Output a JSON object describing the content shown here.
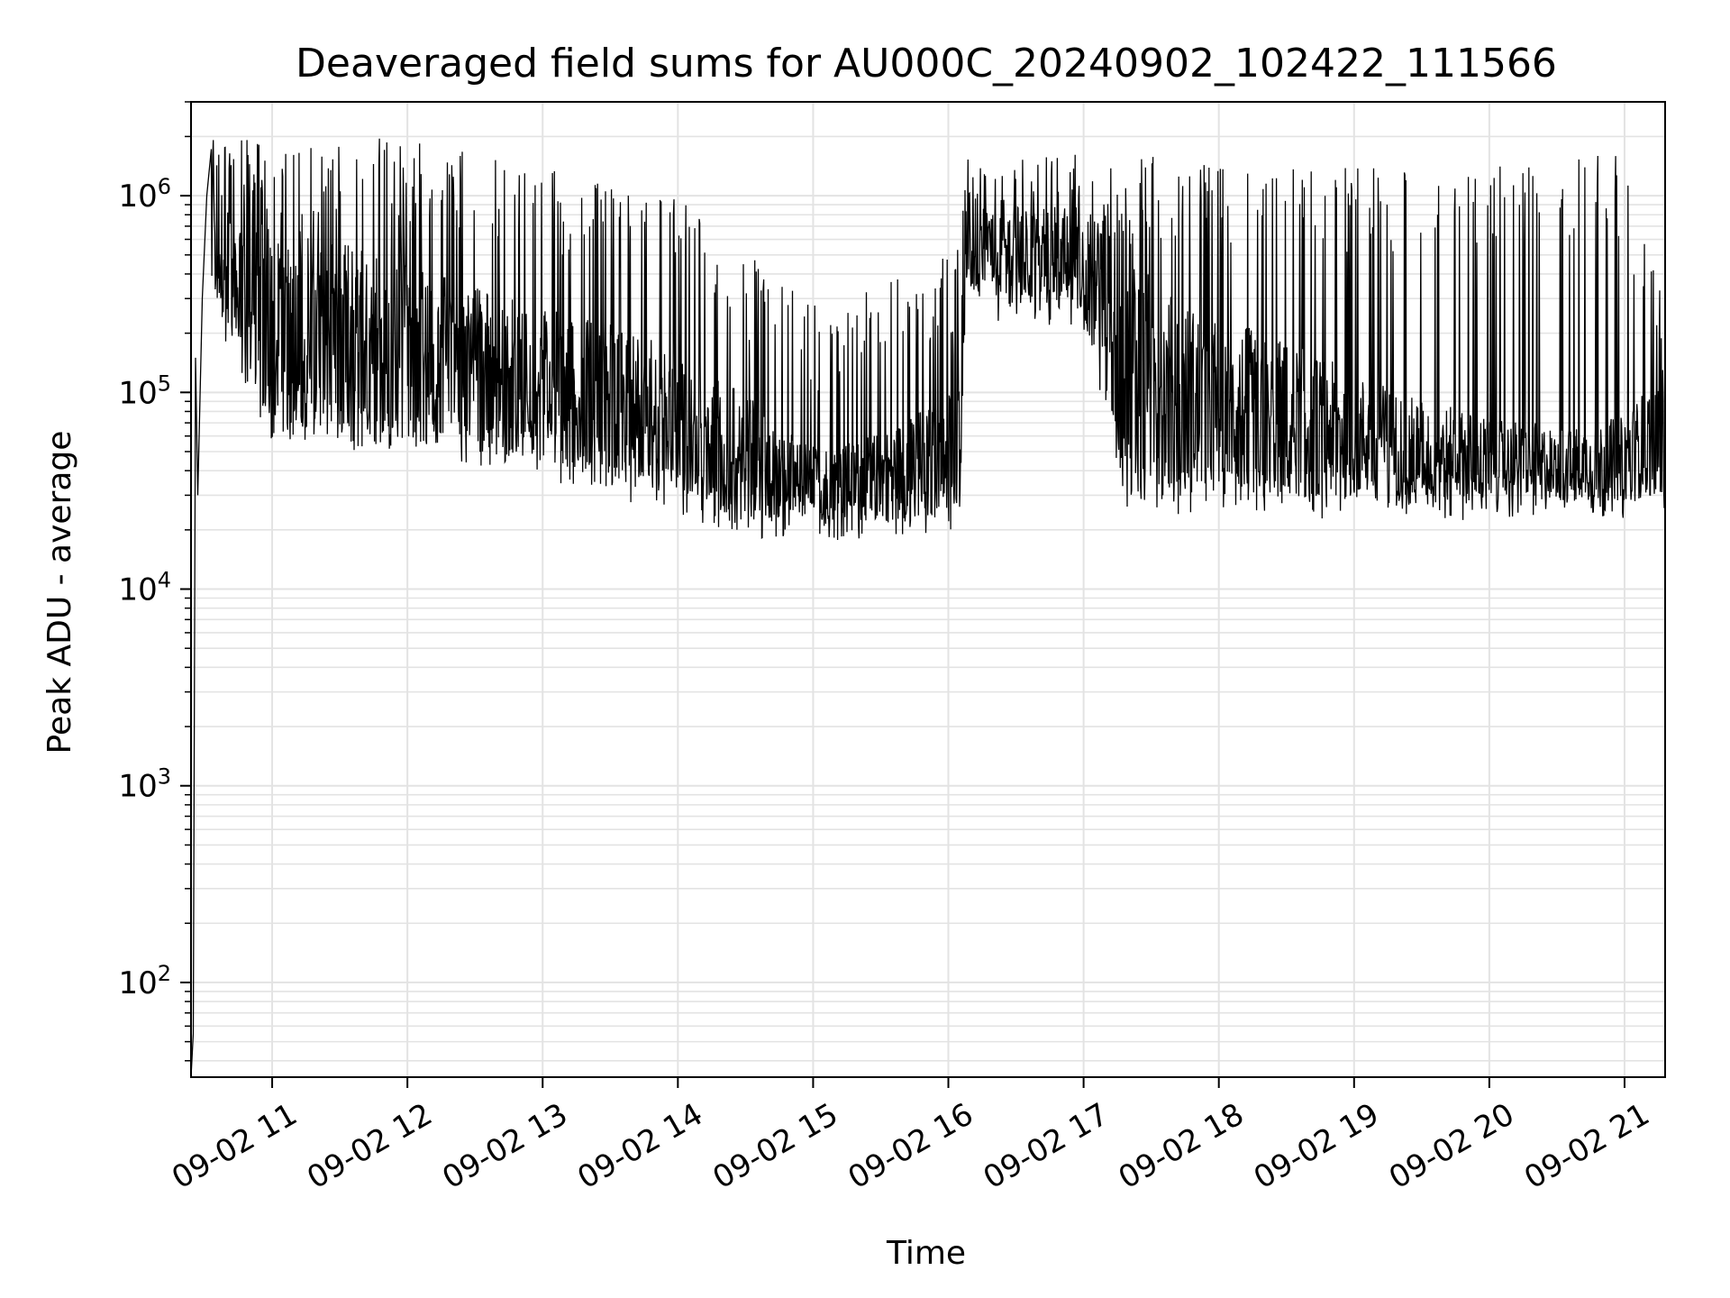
{
  "chart_data": {
    "type": "line",
    "title": "Deaveraged field sums for AU000C_20240902_102422_111566",
    "xlabel": "Time",
    "ylabel": "Peak ADU - average",
    "yscale": "log",
    "ylim": [
      33,
      3000000
    ],
    "xlim": [
      "2024-09-02 10:24",
      "2024-09-02 21:18"
    ],
    "grid": true,
    "line_color": "#000000",
    "grid_color": "#e3e3e3",
    "x_ticks": [
      {
        "t": "2024-09-02 11:00",
        "label": "09-02 11"
      },
      {
        "t": "2024-09-02 12:00",
        "label": "09-02 12"
      },
      {
        "t": "2024-09-02 13:00",
        "label": "09-02 13"
      },
      {
        "t": "2024-09-02 14:00",
        "label": "09-02 14"
      },
      {
        "t": "2024-09-02 15:00",
        "label": "09-02 15"
      },
      {
        "t": "2024-09-02 16:00",
        "label": "09-02 16"
      },
      {
        "t": "2024-09-02 17:00",
        "label": "09-02 17"
      },
      {
        "t": "2024-09-02 18:00",
        "label": "09-02 18"
      },
      {
        "t": "2024-09-02 19:00",
        "label": "09-02 19"
      },
      {
        "t": "2024-09-02 20:00",
        "label": "09-02 20"
      },
      {
        "t": "2024-09-02 21:00",
        "label": "09-02 21"
      }
    ],
    "y_ticks": [
      {
        "value": 100,
        "base": "10",
        "exp": "2"
      },
      {
        "value": 1000,
        "base": "10",
        "exp": "3"
      },
      {
        "value": 10000,
        "base": "10",
        "exp": "4"
      },
      {
        "value": 100000,
        "base": "10",
        "exp": "5"
      },
      {
        "value": 1000000,
        "base": "10",
        "exp": "6"
      }
    ],
    "series": [
      {
        "points": [
          [
            "2024-09-02 10:24",
            33
          ],
          [
            "2024-09-02 10:25",
            55
          ],
          [
            "2024-09-02 10:26",
            150000
          ],
          [
            "2024-09-02 10:27",
            30000
          ],
          [
            "2024-09-02 10:29",
            300000
          ],
          [
            "2024-09-02 10:31",
            1000000
          ],
          [
            "2024-09-02 10:33",
            1700000
          ],
          [
            "2024-09-02 10:36",
            900000
          ],
          [
            "2024-09-02 10:40",
            1500000
          ],
          [
            "2024-09-02 10:45",
            500000
          ],
          [
            "2024-09-02 10:50",
            1200000
          ],
          [
            "2024-09-02 11:00",
            500000
          ],
          [
            "2024-09-02 11:15",
            400000
          ],
          [
            "2024-09-02 11:30",
            350000
          ],
          [
            "2024-09-02 11:45",
            320000
          ],
          [
            "2024-09-02 12:00",
            300000
          ],
          [
            "2024-09-02 12:15",
            260000
          ],
          [
            "2024-09-02 12:30",
            220000
          ],
          [
            "2024-09-02 12:45",
            200000
          ],
          [
            "2024-09-02 13:00",
            180000
          ],
          [
            "2024-09-02 13:15",
            160000
          ],
          [
            "2024-09-02 13:30",
            150000
          ],
          [
            "2024-09-02 13:45",
            130000
          ],
          [
            "2024-09-02 14:00",
            120000
          ],
          [
            "2024-09-02 14:15",
            90000
          ],
          [
            "2024-09-02 14:30",
            70000
          ],
          [
            "2024-09-02 14:45",
            50000
          ],
          [
            "2024-09-02 15:00",
            45000
          ],
          [
            "2024-09-02 15:15",
            45000
          ],
          [
            "2024-09-02 15:30",
            50000
          ],
          [
            "2024-09-02 15:45",
            60000
          ],
          [
            "2024-09-02 16:00",
            70000
          ],
          [
            "2024-09-02 16:08",
            800000
          ],
          [
            "2024-09-02 16:30",
            700000
          ],
          [
            "2024-09-02 17:00",
            600000
          ],
          [
            "2024-09-02 17:20",
            500000
          ],
          [
            "2024-09-02 17:30",
            200000
          ],
          [
            "2024-09-02 18:00",
            150000
          ],
          [
            "2024-09-02 18:30",
            120000
          ],
          [
            "2024-09-02 19:00",
            90000
          ],
          [
            "2024-09-02 19:30",
            70000
          ],
          [
            "2024-09-02 20:00",
            60000
          ],
          [
            "2024-09-02 20:30",
            55000
          ],
          [
            "2024-09-02 21:00",
            60000
          ],
          [
            "2024-09-02 21:18",
            100000
          ]
        ],
        "envelope": [
          {
            "t": "2024-09-02 10:33",
            "high": 1500000,
            "low": 300000
          },
          {
            "t": "2024-09-02 11:00",
            "high": 1400000,
            "low": 70000
          },
          {
            "t": "2024-09-02 12:00",
            "high": 1400000,
            "low": 55000
          },
          {
            "t": "2024-09-02 13:00",
            "high": 1000000,
            "low": 45000
          },
          {
            "t": "2024-09-02 14:00",
            "high": 700000,
            "low": 30000
          },
          {
            "t": "2024-09-02 14:40",
            "high": 300000,
            "low": 20000
          },
          {
            "t": "2024-09-02 15:00",
            "high": 200000,
            "low": 22000
          },
          {
            "t": "2024-09-02 15:45",
            "high": 300000,
            "low": 22000
          },
          {
            "t": "2024-09-02 16:05",
            "high": 400000,
            "low": 25000
          },
          {
            "t": "2024-09-02 16:08",
            "high": 1100000,
            "low": 300000
          },
          {
            "t": "2024-09-02 17:00",
            "high": 1200000,
            "low": 250000
          },
          {
            "t": "2024-09-02 17:20",
            "high": 1200000,
            "low": 30000
          },
          {
            "t": "2024-09-02 18:00",
            "high": 1000000,
            "low": 30000
          },
          {
            "t": "2024-09-02 19:00",
            "high": 1000000,
            "low": 28000
          },
          {
            "t": "2024-09-02 20:00",
            "high": 1000000,
            "low": 28000
          },
          {
            "t": "2024-09-02 21:00",
            "high": 1200000,
            "low": 28000
          },
          {
            "t": "2024-09-02 21:18",
            "high": 200000,
            "low": 30000
          }
        ]
      }
    ]
  }
}
